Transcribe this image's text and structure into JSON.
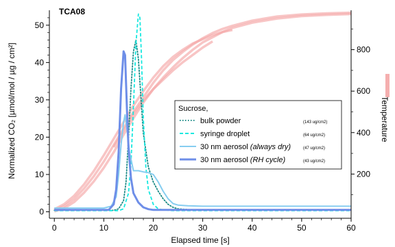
{
  "chart_data": {
    "type": "line",
    "panel_tag": "TCA08",
    "xlabel": "Elapsed time [s]",
    "ylabel": "Normalized CO₂  [µmol/mol / µg / cm²]",
    "y2label": "Temperature",
    "xlim": [
      -1,
      60
    ],
    "ylim": [
      -1,
      54
    ],
    "y2lim": [
      0,
      990
    ],
    "x_ticks": [
      0,
      10,
      20,
      30,
      40,
      50,
      60
    ],
    "y_ticks": [
      0,
      10,
      20,
      30,
      40,
      50
    ],
    "y2_ticks": [
      200,
      400,
      600,
      800
    ],
    "legend_title": "Sucrose,",
    "legend_position": "center-right",
    "grid": false,
    "series": [
      {
        "name": "bulk powder",
        "note": "(143 ug/cm2)",
        "color": "#1a8a86",
        "style": "dotted",
        "x": [
          0,
          10,
          12,
          13,
          14,
          14.5,
          15,
          15.5,
          16,
          16.5,
          17,
          17.5,
          18,
          19,
          20,
          21,
          22,
          23,
          24,
          25,
          27,
          30,
          35,
          40,
          50,
          60
        ],
        "y": [
          0.4,
          0.4,
          0.4,
          0.8,
          3,
          8,
          20,
          33,
          43,
          46,
          41,
          31,
          21,
          12,
          8,
          5.5,
          3.5,
          2,
          1.2,
          0.8,
          0.6,
          0.5,
          0.5,
          0.5,
          0.5,
          0.5
        ]
      },
      {
        "name": "syringe droplet",
        "note": "(64 ug/cm2)",
        "color": "#17e8e0",
        "style": "dashed",
        "x": [
          0,
          10,
          13,
          14,
          15,
          15.5,
          16,
          16.5,
          17,
          17.3,
          17.6,
          18,
          18.5,
          19,
          20,
          21,
          22,
          24,
          30,
          60
        ],
        "y": [
          0.3,
          0.3,
          0.3,
          0.8,
          5,
          13,
          28,
          45,
          53,
          52,
          42,
          25,
          12,
          6,
          2,
          0.8,
          0.5,
          0.3,
          0.3,
          0.3
        ],
        "clip_top": true
      },
      {
        "name": "30 nm aerosol",
        "qualifier": "(always dry)",
        "note": "(47 ug/cm2)",
        "color": "#86cdf0",
        "style": "solid",
        "x": [
          0,
          10,
          11.5,
          12.5,
          13,
          13.5,
          14,
          14.3,
          14.7,
          15.2,
          16,
          17,
          18,
          19,
          20,
          21,
          22,
          23,
          24,
          25,
          27,
          30,
          40,
          60
        ],
        "y": [
          1,
          1,
          1.5,
          4,
          10,
          18,
          24,
          26,
          22,
          16,
          11,
          11,
          10.7,
          10.5,
          10,
          8,
          5.5,
          3.5,
          2.2,
          1.8,
          1.6,
          1.5,
          1.5,
          1.5
        ]
      },
      {
        "name": "30 nm aerosol",
        "qualifier": "(RH cycle)",
        "note": "(43 ug/cm2)",
        "color": "#6e8ee8",
        "style": "solid",
        "x": [
          0,
          10,
          11,
          12,
          12.5,
          13,
          13.5,
          14,
          14.3,
          14.7,
          15,
          15.5,
          16,
          17,
          18,
          19,
          20,
          21,
          22,
          30,
          60
        ],
        "y": [
          0.5,
          0.5,
          0.5,
          2,
          6,
          16,
          33,
          43,
          42,
          27,
          17,
          9,
          5,
          2.5,
          1.2,
          0.7,
          0.5,
          0.5,
          0.5,
          0.5,
          0.5
        ]
      }
    ],
    "temperature_series": {
      "name": "Temperature",
      "axis": "right",
      "color": "#f4a6a6",
      "traces": [
        {
          "x": [
            0,
            2,
            4,
            6,
            8,
            10,
            12,
            14,
            16,
            18,
            20,
            22,
            24,
            26,
            28,
            30,
            32,
            34,
            36,
            40,
            45,
            50,
            55,
            60
          ],
          "y": [
            25,
            45,
            80,
            130,
            190,
            260,
            340,
            420,
            500,
            570,
            640,
            700,
            750,
            790,
            825,
            855,
            880,
            900,
            915,
            940,
            960,
            970,
            975,
            978
          ]
        },
        {
          "x": [
            0,
            2,
            4,
            6,
            8,
            10,
            12,
            14,
            16,
            18,
            20,
            22,
            24,
            26,
            28,
            30,
            32,
            34,
            36,
            40,
            45,
            50,
            55,
            60
          ],
          "y": [
            20,
            35,
            65,
            110,
            165,
            230,
            305,
            390,
            470,
            545,
            610,
            665,
            715,
            760,
            800,
            835,
            860,
            885,
            905,
            930,
            950,
            962,
            968,
            972
          ]
        },
        {
          "x": [
            0,
            2,
            4,
            6,
            8,
            10,
            12,
            14,
            16,
            18,
            20,
            22,
            24,
            26,
            28,
            30,
            32,
            34,
            36
          ],
          "y": [
            30,
            55,
            95,
            150,
            215,
            290,
            370,
            450,
            530,
            600,
            665,
            720,
            765,
            800,
            830,
            850,
            870,
            885,
            895
          ]
        },
        {
          "x": [
            12,
            14,
            16,
            18,
            20,
            22,
            24,
            26,
            28,
            30,
            32
          ],
          "y": [
            330,
            410,
            490,
            555,
            610,
            655,
            700,
            740,
            775,
            810,
            840
          ]
        }
      ]
    }
  }
}
